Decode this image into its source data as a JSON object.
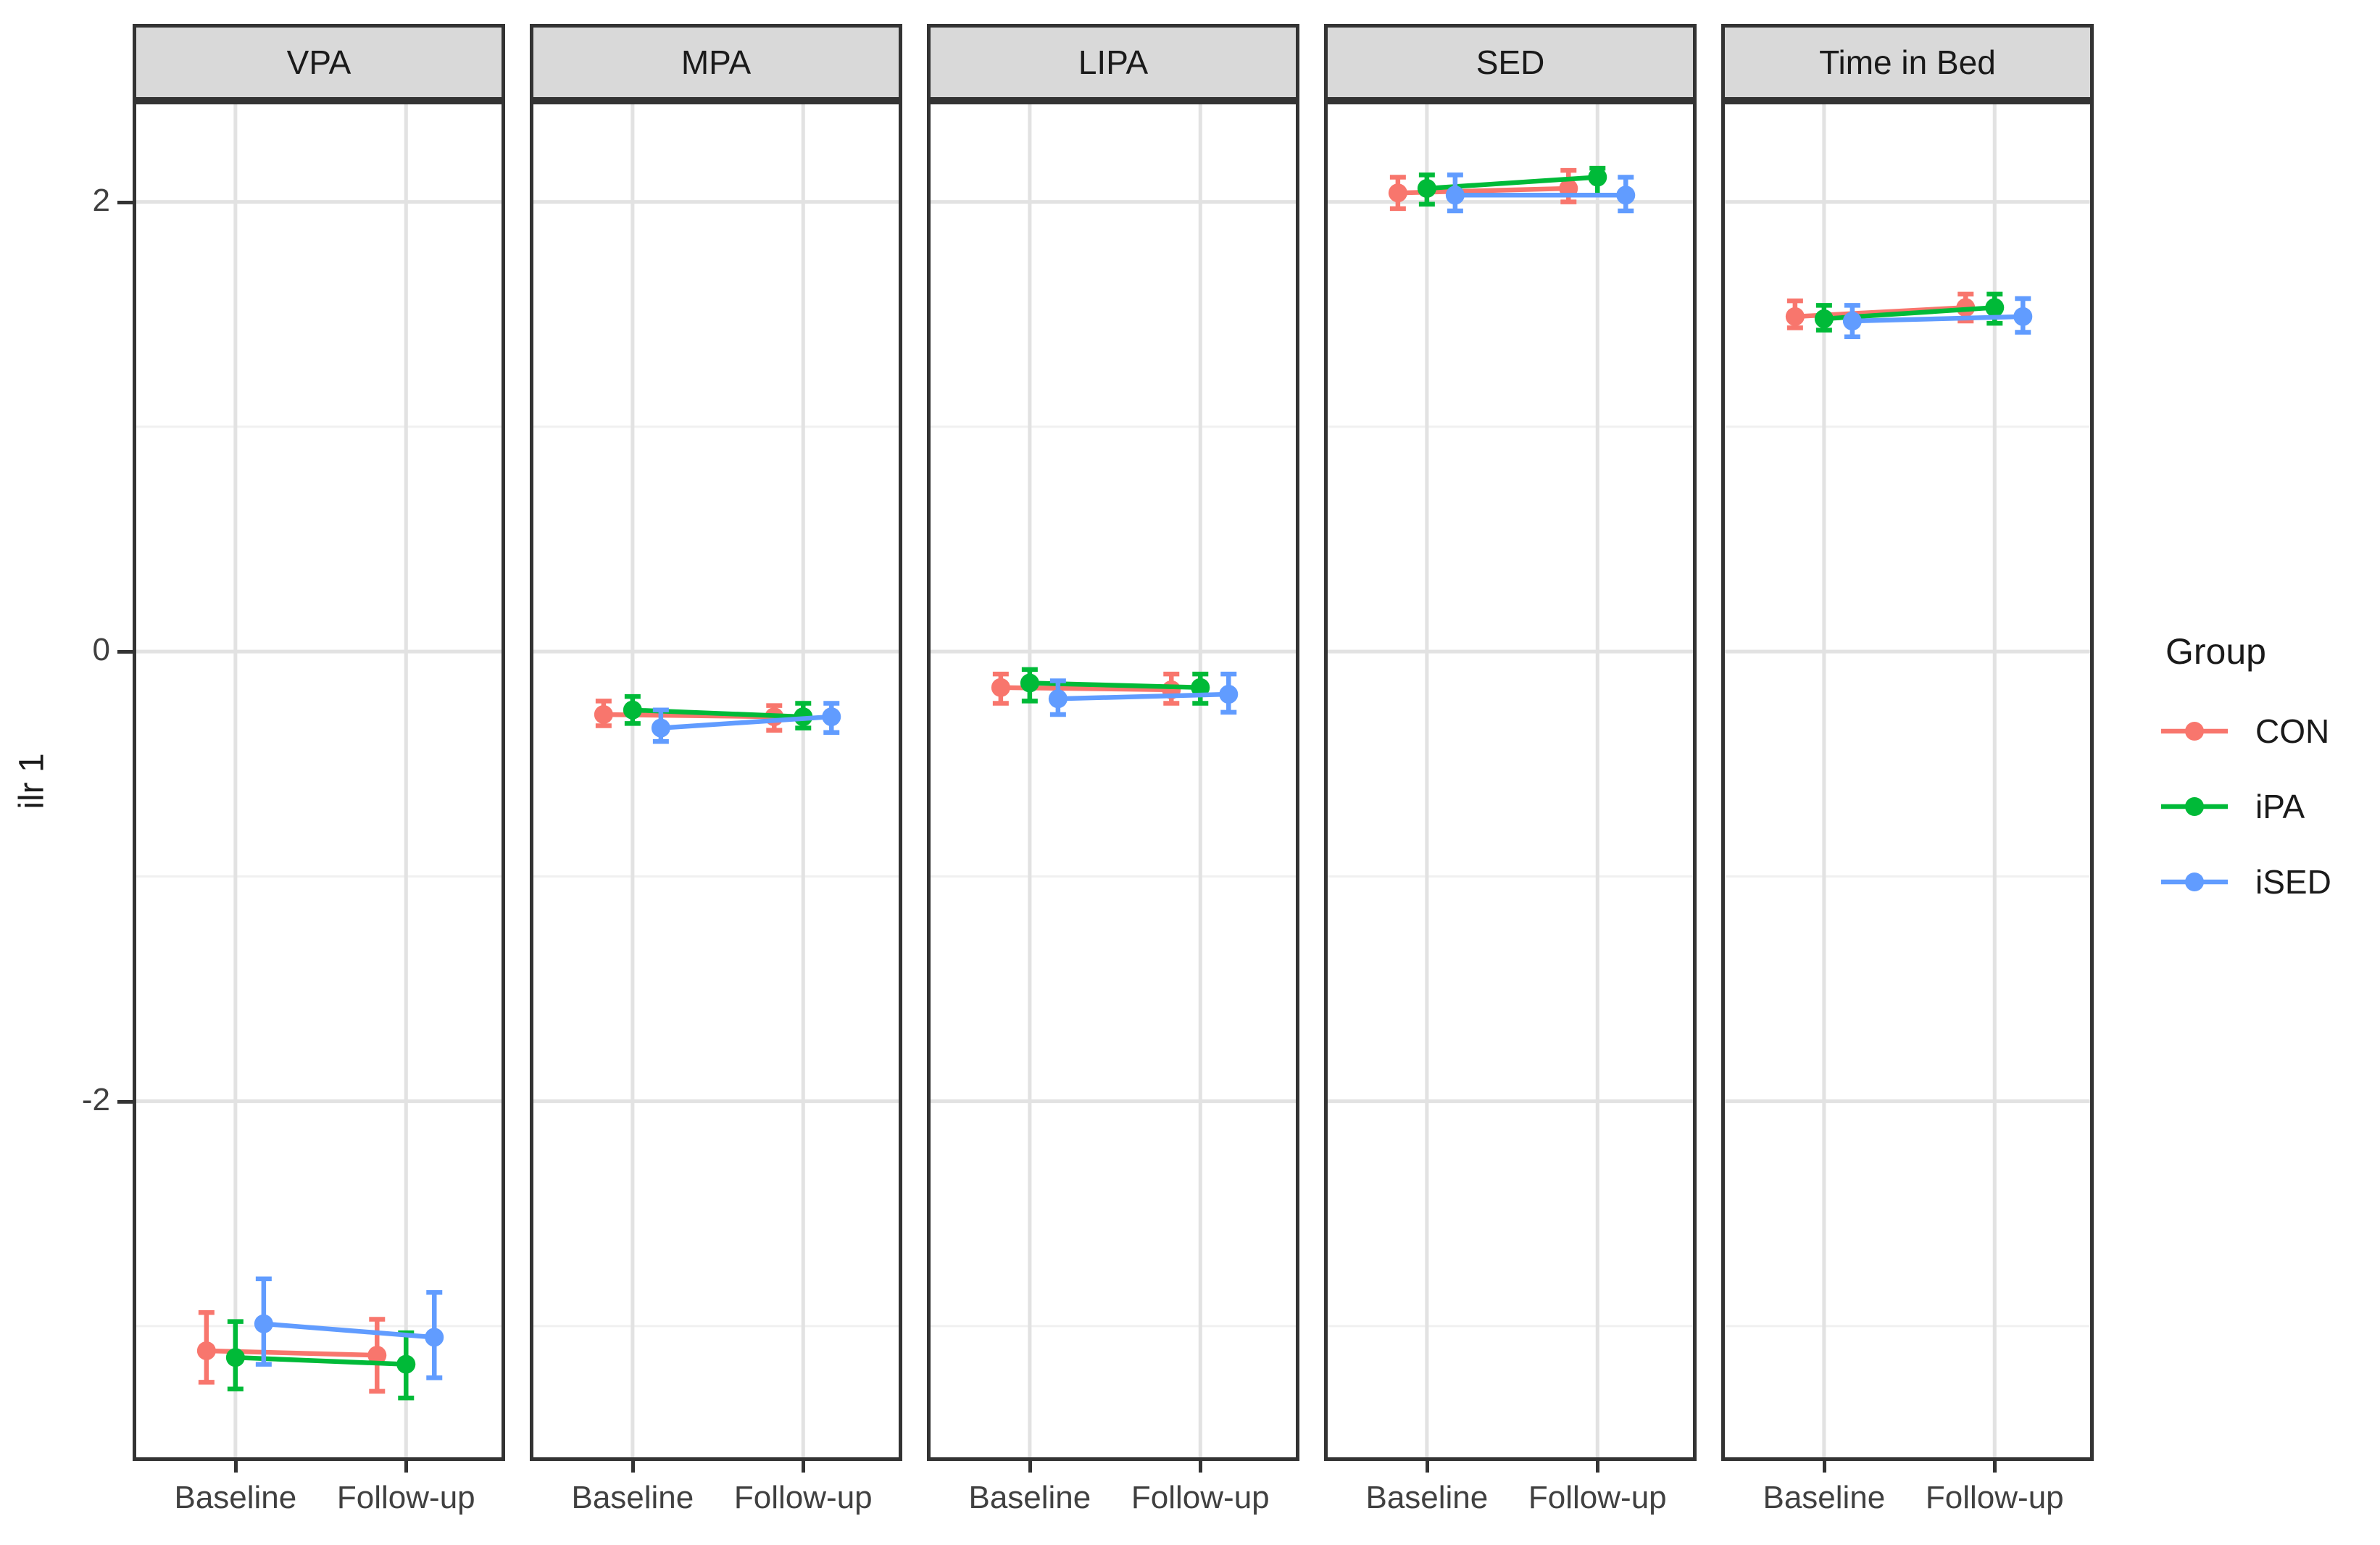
{
  "chart_data": {
    "type": "line",
    "subtype": "faceted-pointrange-with-errorbars",
    "ylabel": "ilr 1",
    "ylim": [
      -3.6,
      2.45
    ],
    "y_ticks": [
      2,
      0,
      -2
    ],
    "y_minor_ticks": [
      1,
      -1,
      -3
    ],
    "x_categories": [
      "Baseline",
      "Follow-up"
    ],
    "legend_title": "Group",
    "groups": [
      {
        "name": "CON",
        "color": "#F8766D"
      },
      {
        "name": "iPA",
        "color": "#00BA38"
      },
      {
        "name": "iSED",
        "color": "#619CFF"
      }
    ],
    "panels": [
      {
        "title": "VPA",
        "series": [
          {
            "group": "CON",
            "baseline": {
              "mean": -3.11,
              "lo": -3.25,
              "hi": -2.94
            },
            "followup": {
              "mean": -3.13,
              "lo": -3.29,
              "hi": -2.97
            }
          },
          {
            "group": "iPA",
            "baseline": {
              "mean": -3.14,
              "lo": -3.28,
              "hi": -2.98
            },
            "followup": {
              "mean": -3.17,
              "lo": -3.32,
              "hi": -3.03
            }
          },
          {
            "group": "iSED",
            "baseline": {
              "mean": -2.99,
              "lo": -3.17,
              "hi": -2.79
            },
            "followup": {
              "mean": -3.05,
              "lo": -3.23,
              "hi": -2.85
            }
          }
        ]
      },
      {
        "title": "MPA",
        "series": [
          {
            "group": "CON",
            "baseline": {
              "mean": -0.28,
              "lo": -0.33,
              "hi": -0.22
            },
            "followup": {
              "mean": -0.29,
              "lo": -0.35,
              "hi": -0.24
            }
          },
          {
            "group": "iPA",
            "baseline": {
              "mean": -0.26,
              "lo": -0.32,
              "hi": -0.2
            },
            "followup": {
              "mean": -0.29,
              "lo": -0.34,
              "hi": -0.23
            }
          },
          {
            "group": "iSED",
            "baseline": {
              "mean": -0.34,
              "lo": -0.4,
              "hi": -0.26
            },
            "followup": {
              "mean": -0.29,
              "lo": -0.36,
              "hi": -0.23
            }
          }
        ]
      },
      {
        "title": "LIPA",
        "series": [
          {
            "group": "CON",
            "baseline": {
              "mean": -0.16,
              "lo": -0.23,
              "hi": -0.1
            },
            "followup": {
              "mean": -0.17,
              "lo": -0.23,
              "hi": -0.1
            }
          },
          {
            "group": "iPA",
            "baseline": {
              "mean": -0.14,
              "lo": -0.22,
              "hi": -0.08
            },
            "followup": {
              "mean": -0.16,
              "lo": -0.23,
              "hi": -0.1
            }
          },
          {
            "group": "iSED",
            "baseline": {
              "mean": -0.21,
              "lo": -0.28,
              "hi": -0.13
            },
            "followup": {
              "mean": -0.19,
              "lo": -0.27,
              "hi": -0.1
            }
          }
        ]
      },
      {
        "title": "SED",
        "series": [
          {
            "group": "CON",
            "baseline": {
              "mean": 2.04,
              "lo": 1.97,
              "hi": 2.11
            },
            "followup": {
              "mean": 2.06,
              "lo": 2.0,
              "hi": 2.14
            }
          },
          {
            "group": "iPA",
            "baseline": {
              "mean": 2.06,
              "lo": 1.99,
              "hi": 2.12
            },
            "followup": {
              "mean": 2.11,
              "lo": 2.03,
              "hi": 2.15
            }
          },
          {
            "group": "iSED",
            "baseline": {
              "mean": 2.03,
              "lo": 1.96,
              "hi": 2.12
            },
            "followup": {
              "mean": 2.03,
              "lo": 1.96,
              "hi": 2.11
            }
          }
        ]
      },
      {
        "title": "Time in Bed",
        "series": [
          {
            "group": "CON",
            "baseline": {
              "mean": 1.49,
              "lo": 1.44,
              "hi": 1.56
            },
            "followup": {
              "mean": 1.53,
              "lo": 1.47,
              "hi": 1.59
            }
          },
          {
            "group": "iPA",
            "baseline": {
              "mean": 1.48,
              "lo": 1.43,
              "hi": 1.54
            },
            "followup": {
              "mean": 1.53,
              "lo": 1.46,
              "hi": 1.59
            }
          },
          {
            "group": "iSED",
            "baseline": {
              "mean": 1.47,
              "lo": 1.4,
              "hi": 1.54
            },
            "followup": {
              "mean": 1.49,
              "lo": 1.42,
              "hi": 1.57
            }
          }
        ]
      }
    ],
    "style": {
      "strip_fill": "#D9D9D9",
      "panel_border": "#333333",
      "grid_major": "#E2E2E2",
      "grid_minor": "#F0F0F0",
      "axis_text": "#404040"
    }
  }
}
